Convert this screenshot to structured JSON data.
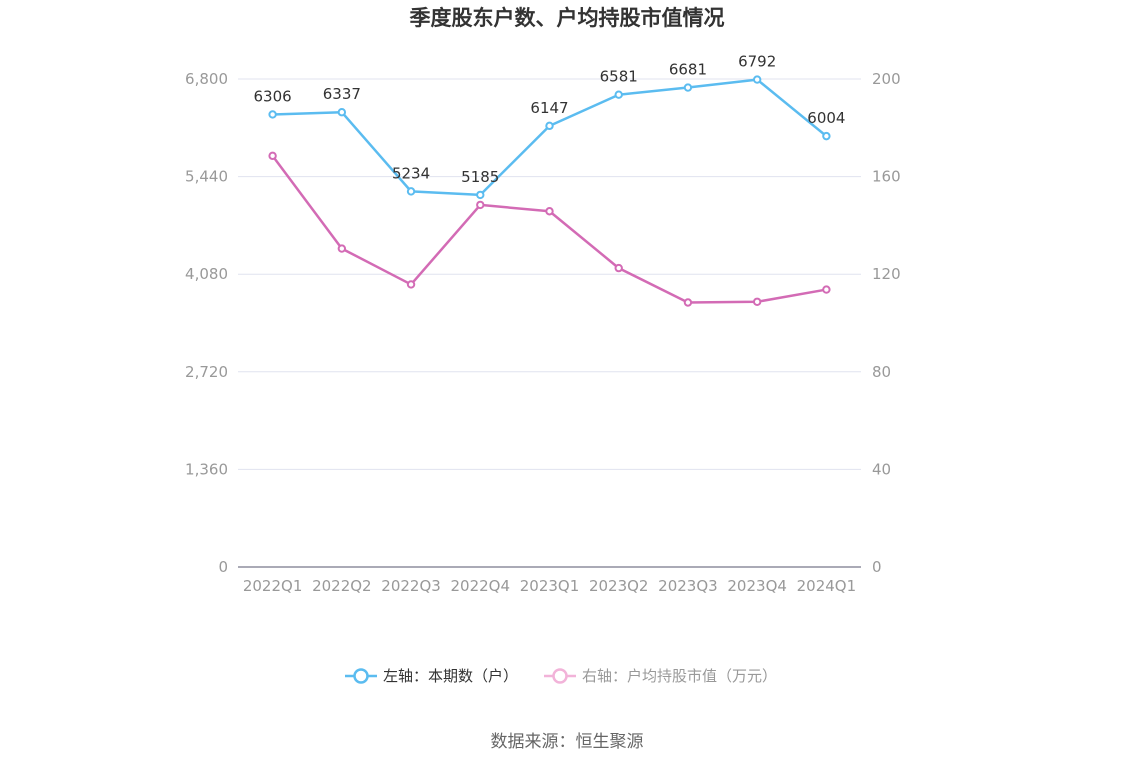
{
  "chart_data": {
    "type": "line",
    "title": "季度股东户数、户均持股市值情况",
    "categories": [
      "2022Q1",
      "2022Q2",
      "2022Q3",
      "2022Q4",
      "2023Q1",
      "2023Q2",
      "2023Q3",
      "2023Q4",
      "2024Q1"
    ],
    "left_axis": {
      "ticks": [
        "0",
        "1,360",
        "2,720",
        "4,080",
        "5,440",
        "6,800"
      ],
      "ylim": [
        0,
        6800
      ]
    },
    "right_axis": {
      "ticks": [
        "0",
        "40",
        "80",
        "120",
        "160",
        "200"
      ],
      "ylim": [
        0,
        200
      ]
    },
    "series": [
      {
        "name": "左轴：本期数（户）",
        "axis": "left",
        "color": "#5bbcf0",
        "values": [
          6306,
          6337,
          5234,
          5185,
          6147,
          6581,
          6681,
          6792,
          6004
        ],
        "labels": [
          "6306",
          "6337",
          "5234",
          "5185",
          "6147",
          "6581",
          "6681",
          "6792",
          "6004"
        ]
      },
      {
        "name": "右轴：户均持股市值（万元）",
        "axis": "right",
        "color": "#d36bb5",
        "values": [
          168.5,
          130.5,
          115.8,
          148.4,
          145.8,
          122.5,
          108.4,
          108.7,
          113.7
        ]
      }
    ],
    "grid": true,
    "legend_position": "bottom"
  },
  "source": "数据来源：恒生聚源"
}
